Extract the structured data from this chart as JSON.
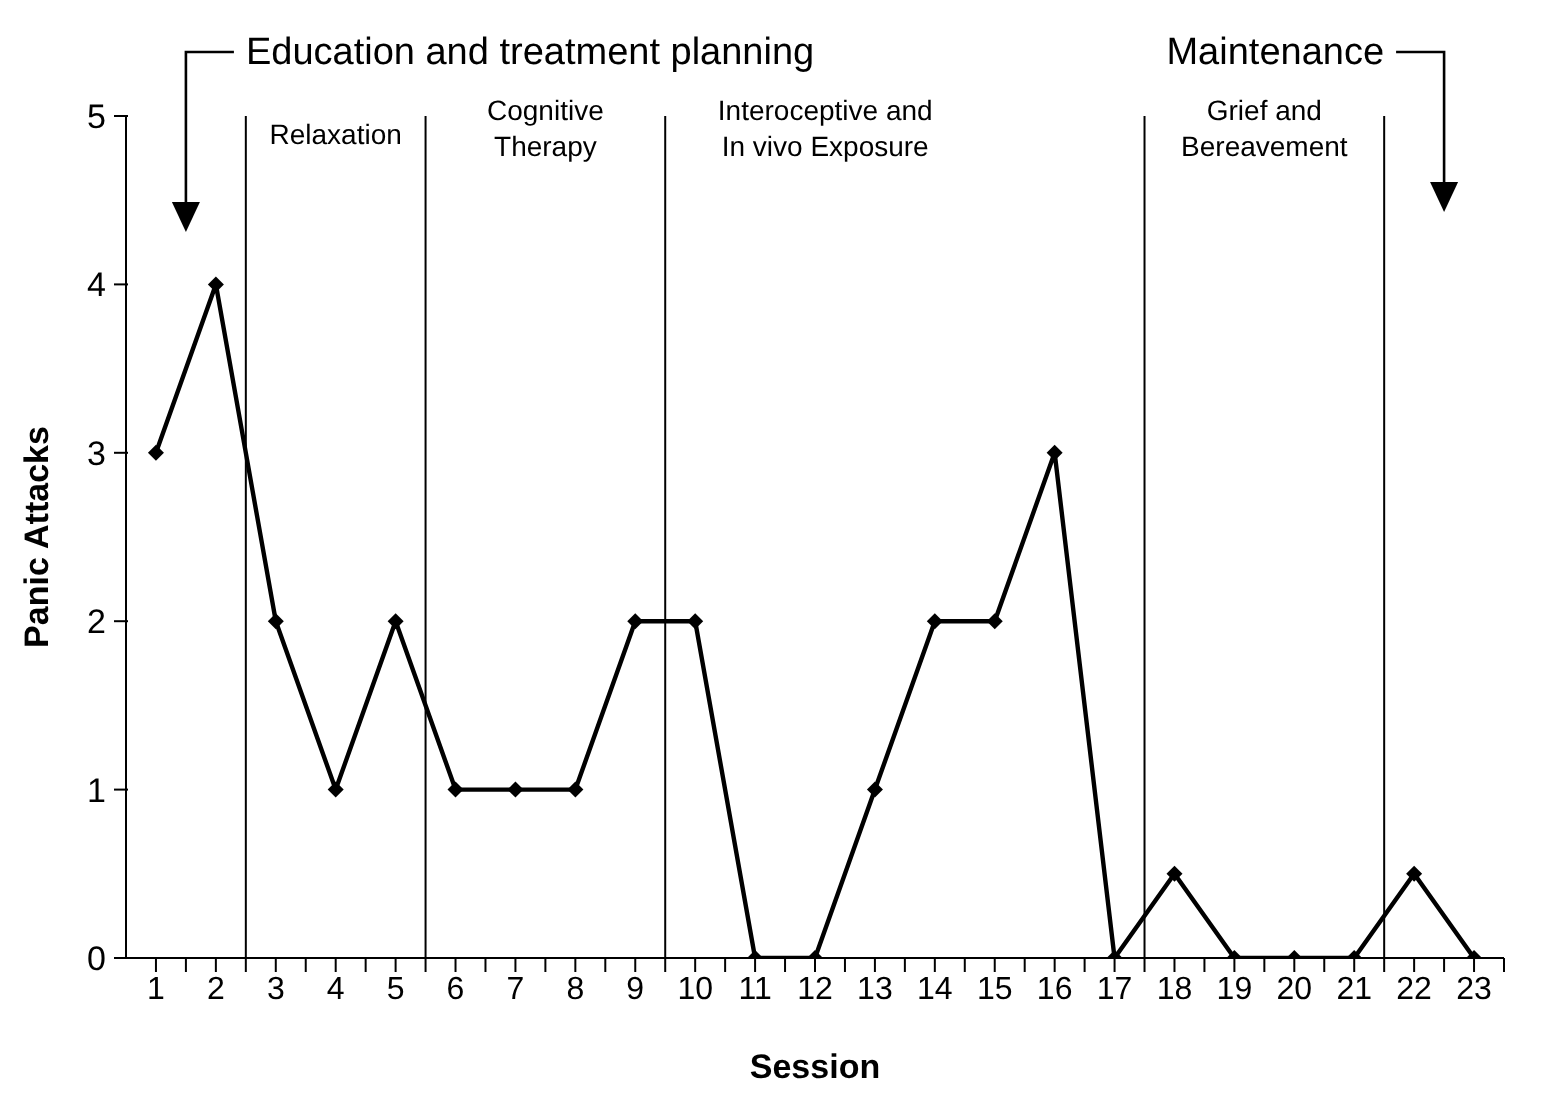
{
  "chart_data": {
    "type": "line",
    "xlabel": "Session",
    "ylabel": "Panic Attacks",
    "x": [
      1,
      2,
      3,
      4,
      5,
      6,
      7,
      8,
      9,
      10,
      11,
      12,
      13,
      14,
      15,
      16,
      17,
      18,
      19,
      20,
      21,
      22,
      23
    ],
    "series": [
      {
        "color": "#000000",
        "values": [
          3,
          4,
          2,
          1,
          2,
          1,
          1,
          1,
          2,
          2,
          0,
          0,
          1,
          2,
          2,
          3,
          0,
          0.5,
          0,
          0,
          0,
          0.5,
          0
        ]
      }
    ],
    "xlim": [
      0.5,
      23.5
    ],
    "xticks": [
      1,
      {
        "value": 1.5,
        "label": null
      },
      2,
      {
        "value": 2.5,
        "label": null
      },
      3,
      {
        "value": 3.5,
        "label": null
      },
      4,
      {
        "value": 4.5,
        "label": null
      },
      5,
      {
        "value": 5.5,
        "label": null
      },
      6,
      {
        "value": 6.5,
        "label": null
      },
      7,
      {
        "value": 7.5,
        "label": null
      },
      8,
      {
        "value": 8.5,
        "label": null
      },
      9,
      {
        "value": 9.5,
        "label": null
      },
      10,
      {
        "value": 10.5,
        "label": null
      },
      11,
      {
        "value": 11.5,
        "label": null
      },
      12,
      {
        "value": 12.5,
        "label": null
      },
      13,
      {
        "value": 13.5,
        "label": null
      },
      14,
      {
        "value": 14.5,
        "label": null
      },
      15,
      {
        "value": 15.5,
        "label": null
      },
      16,
      {
        "value": 16.5,
        "label": null
      },
      17,
      {
        "value": 17.5,
        "label": null
      },
      18,
      {
        "value": 18.5,
        "label": null
      },
      19,
      {
        "value": 19.5,
        "label": null
      },
      20,
      {
        "value": 20.5,
        "label": null
      },
      21,
      {
        "value": 21.5,
        "label": null
      },
      22,
      {
        "value": 22.5,
        "label": null
      },
      23,
      {
        "value": 23.5,
        "label": null
      }
    ],
    "ylim": [
      0,
      5
    ],
    "yticks": [
      0,
      1,
      2,
      3,
      4,
      5
    ],
    "ref_lines": [
      {
        "axis": "x",
        "value": 2.5,
        "color": "#000000",
        "label": "Relaxation"
      },
      {
        "axis": "x",
        "value": 5.5,
        "color": "#000000",
        "label": "Cognitive Therapy"
      },
      {
        "axis": "x",
        "value": 9.5,
        "color": "#000000",
        "label": "Interoceptive and In vivo Exposure"
      },
      {
        "axis": "x",
        "value": 17.5,
        "color": "#000000",
        "label": "Grief and Bereavement"
      },
      {
        "axis": "x",
        "value": 21.5,
        "color": "#000000"
      }
    ],
    "annotations": [
      "Education and treatment planning",
      "Maintenance"
    ],
    "marker": "diamond",
    "line_style": "solid",
    "grid": false,
    "legend": false
  }
}
